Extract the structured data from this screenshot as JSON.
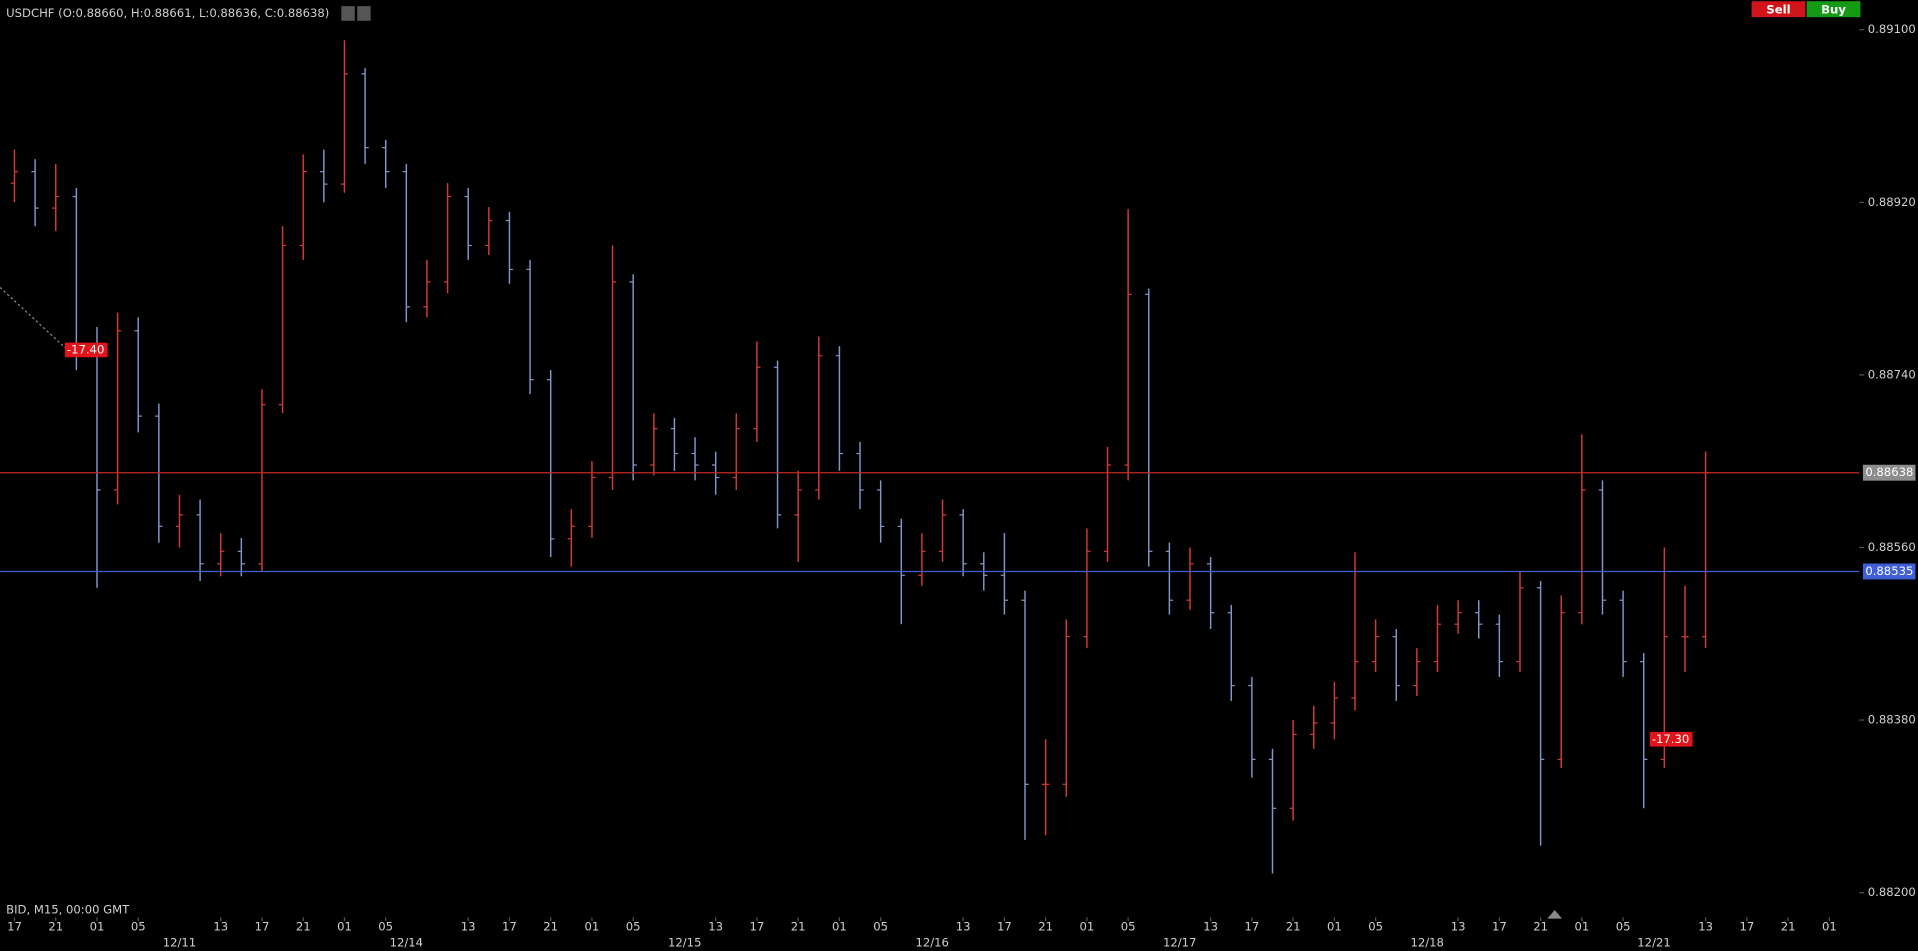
{
  "chart_data": {
    "type": "ohlc",
    "title": "USDCHF (O:0.88660, H:0.88661, L:0.88636, C:0.88638)",
    "info": "BID, M15, 00:00 GMT",
    "buttons": [
      "Sell",
      "Buy"
    ],
    "up_color": "#d23a3a",
    "down_color": "#7d97c9",
    "xlim": [
      -1.4,
      178.9
    ],
    "ylim": [
      0.88187,
      0.89131
    ],
    "yticks": [
      {
        "value": 0.891,
        "label": "0.89100"
      },
      {
        "value": 0.8892,
        "label": "0.88920"
      },
      {
        "value": 0.8874,
        "label": "0.88740"
      },
      {
        "value": 0.8856,
        "label": "0.88560"
      },
      {
        "value": 0.8838,
        "label": "0.88380"
      },
      {
        "value": 0.882,
        "label": "0.88200"
      }
    ],
    "xticks": [
      {
        "value": 0,
        "label": "17"
      },
      {
        "value": 4,
        "label": "21"
      },
      {
        "value": 8,
        "label": "01"
      },
      {
        "value": 12,
        "label": "05"
      },
      {
        "value": 20,
        "label": "13"
      },
      {
        "value": 24,
        "label": "17"
      },
      {
        "value": 28,
        "label": "21"
      },
      {
        "value": 32,
        "label": "01"
      },
      {
        "value": 36,
        "label": "05"
      },
      {
        "value": 44,
        "label": "13"
      },
      {
        "value": 48,
        "label": "17"
      },
      {
        "value": 52,
        "label": "21"
      },
      {
        "value": 56,
        "label": "01"
      },
      {
        "value": 60,
        "label": "05"
      },
      {
        "value": 68,
        "label": "13"
      },
      {
        "value": 72,
        "label": "17"
      },
      {
        "value": 76,
        "label": "21"
      },
      {
        "value": 80,
        "label": "01"
      },
      {
        "value": 84,
        "label": "05"
      },
      {
        "value": 92,
        "label": "13"
      },
      {
        "value": 96,
        "label": "17"
      },
      {
        "value": 100,
        "label": "21"
      },
      {
        "value": 104,
        "label": "01"
      },
      {
        "value": 108,
        "label": "05"
      },
      {
        "value": 116,
        "label": "13"
      },
      {
        "value": 120,
        "label": "17"
      },
      {
        "value": 124,
        "label": "21"
      },
      {
        "value": 128,
        "label": "01"
      },
      {
        "value": 132,
        "label": "05"
      },
      {
        "value": 140,
        "label": "13"
      },
      {
        "value": 144,
        "label": "17"
      },
      {
        "value": 148,
        "label": "21"
      },
      {
        "value": 152,
        "label": "01"
      },
      {
        "value": 156,
        "label": "05"
      },
      {
        "value": 164,
        "label": "13"
      },
      {
        "value": 168,
        "label": "17"
      },
      {
        "value": 172,
        "label": "21"
      },
      {
        "value": 176,
        "label": "01"
      }
    ],
    "date_ticks": [
      {
        "value": 16,
        "label": "12/11"
      },
      {
        "value": 38,
        "label": "12/14"
      },
      {
        "value": 65,
        "label": "12/15"
      },
      {
        "value": 89,
        "label": "12/16"
      },
      {
        "value": 113,
        "label": "12/17"
      },
      {
        "value": 137,
        "label": "12/18"
      },
      {
        "value": 159,
        "label": "12/21"
      }
    ],
    "x": [
      0,
      2,
      4,
      6,
      8,
      10,
      12,
      14,
      16,
      18,
      20,
      22,
      24,
      26,
      28,
      30,
      32,
      34,
      36,
      38,
      40,
      42,
      44,
      46,
      48,
      50,
      52,
      54,
      56,
      58,
      60,
      62,
      64,
      66,
      68,
      70,
      72,
      74,
      76,
      78,
      80,
      82,
      84,
      86,
      88,
      90,
      92,
      94,
      96,
      98,
      100,
      102,
      104,
      106,
      108,
      110,
      112,
      114,
      116,
      118,
      120,
      122,
      124,
      126,
      128,
      130,
      132,
      134,
      136,
      138,
      140,
      142,
      144,
      146,
      148,
      150,
      152,
      154,
      156,
      158,
      160,
      162,
      164
    ],
    "open": [
      0.8894,
      0.88952,
      0.88914,
      0.88926,
      0.8876,
      0.8862,
      0.88786,
      0.88697,
      0.88582,
      0.88594,
      0.88543,
      0.88556,
      0.88543,
      0.88709,
      0.88875,
      0.88952,
      0.88939,
      0.89054,
      0.88977,
      0.88952,
      0.88811,
      0.88837,
      0.88926,
      0.88875,
      0.88901,
      0.8885,
      0.88735,
      0.88569,
      0.88582,
      0.88633,
      0.88837,
      0.88646,
      0.88684,
      0.88658,
      0.88646,
      0.88633,
      0.88684,
      0.88748,
      0.88594,
      0.8862,
      0.8876,
      0.88658,
      0.8862,
      0.88582,
      0.88531,
      0.88556,
      0.88594,
      0.88543,
      0.88531,
      0.88505,
      0.88313,
      0.88313,
      0.88467,
      0.88556,
      0.88646,
      0.88824,
      0.88556,
      0.88505,
      0.88543,
      0.88492,
      0.88416,
      0.88339,
      0.88288,
      0.88365,
      0.88377,
      0.88403,
      0.88441,
      0.88467,
      0.88416,
      0.88441,
      0.8848,
      0.88492,
      0.8848,
      0.88441,
      0.88518,
      0.88339,
      0.88492,
      0.8862,
      0.88505,
      0.88441,
      0.88339,
      0.88467,
      0.88467
    ],
    "high": [
      0.88975,
      0.88965,
      0.8896,
      0.88935,
      0.8879,
      0.88805,
      0.888,
      0.8871,
      0.88615,
      0.8861,
      0.88575,
      0.8857,
      0.88725,
      0.88895,
      0.8897,
      0.88975,
      0.89089,
      0.8906,
      0.88985,
      0.8896,
      0.8886,
      0.8894,
      0.88935,
      0.88915,
      0.8891,
      0.8886,
      0.88745,
      0.886,
      0.8865,
      0.88875,
      0.88845,
      0.887,
      0.88695,
      0.88675,
      0.8866,
      0.887,
      0.88775,
      0.88755,
      0.8864,
      0.8878,
      0.8877,
      0.8867,
      0.8863,
      0.8859,
      0.88575,
      0.8861,
      0.886,
      0.88555,
      0.88575,
      0.88515,
      0.8836,
      0.88485,
      0.8858,
      0.88665,
      0.88913,
      0.8883,
      0.88565,
      0.8856,
      0.8855,
      0.885,
      0.88425,
      0.8835,
      0.8838,
      0.88395,
      0.8842,
      0.88555,
      0.88485,
      0.88475,
      0.88455,
      0.885,
      0.88505,
      0.88505,
      0.8849,
      0.88535,
      0.88525,
      0.8851,
      0.88678,
      0.8863,
      0.88515,
      0.8845,
      0.8856,
      0.8852,
      0.8866
    ],
    "low": [
      0.8892,
      0.88895,
      0.8889,
      0.88745,
      0.88518,
      0.88605,
      0.8868,
      0.88565,
      0.8856,
      0.88525,
      0.8853,
      0.8853,
      0.88535,
      0.887,
      0.8886,
      0.8892,
      0.8893,
      0.8896,
      0.88935,
      0.88795,
      0.888,
      0.88825,
      0.8886,
      0.88865,
      0.88835,
      0.8872,
      0.8855,
      0.8854,
      0.8857,
      0.8862,
      0.8863,
      0.88635,
      0.8864,
      0.8863,
      0.88615,
      0.8862,
      0.8867,
      0.8858,
      0.88545,
      0.8861,
      0.8864,
      0.886,
      0.88565,
      0.8848,
      0.8852,
      0.88545,
      0.8853,
      0.88515,
      0.8849,
      0.88255,
      0.8826,
      0.883,
      0.88455,
      0.88545,
      0.8863,
      0.8854,
      0.8849,
      0.88495,
      0.88475,
      0.884,
      0.8832,
      0.8822,
      0.88275,
      0.8835,
      0.8836,
      0.8839,
      0.8843,
      0.884,
      0.88405,
      0.8843,
      0.8847,
      0.88465,
      0.88425,
      0.8843,
      0.88249,
      0.8833,
      0.8848,
      0.8849,
      0.88425,
      0.88288,
      0.8833,
      0.8843,
      0.88455
    ],
    "close": [
      0.88952,
      0.88914,
      0.88926,
      0.8876,
      0.8862,
      0.88786,
      0.88697,
      0.88582,
      0.88594,
      0.88543,
      0.88556,
      0.88543,
      0.88709,
      0.88875,
      0.88952,
      0.88939,
      0.89054,
      0.88977,
      0.88952,
      0.88811,
      0.88837,
      0.88926,
      0.88875,
      0.88901,
      0.8885,
      0.88735,
      0.88569,
      0.88582,
      0.88633,
      0.88837,
      0.88646,
      0.88684,
      0.88658,
      0.88646,
      0.88633,
      0.88684,
      0.88748,
      0.88594,
      0.8862,
      0.8876,
      0.88658,
      0.8862,
      0.88582,
      0.88531,
      0.88556,
      0.88594,
      0.88543,
      0.88531,
      0.88505,
      0.88313,
      0.88313,
      0.88467,
      0.88556,
      0.88646,
      0.88824,
      0.88556,
      0.88505,
      0.88543,
      0.88492,
      0.88416,
      0.88339,
      0.88288,
      0.88365,
      0.88377,
      0.88403,
      0.88441,
      0.88467,
      0.88416,
      0.88441,
      0.8848,
      0.88492,
      0.8848,
      0.88441,
      0.88518,
      0.88339,
      0.88492,
      0.8862,
      0.88505,
      0.88441,
      0.88339,
      0.88467,
      0.88467,
      0.88638
    ],
    "price_lines": [
      {
        "value": 0.88638,
        "color": "#c62828",
        "label_bg": "#8c8c8c"
      },
      {
        "value": 0.88535,
        "color": "#3f5fd6",
        "label_bg": "#3f5fd6"
      }
    ],
    "annotations": [
      {
        "label": "-17.40",
        "x": 6.9,
        "y": 0.88766
      },
      {
        "label": "-17.30",
        "x": 160.6,
        "y": 0.8836
      }
    ]
  }
}
